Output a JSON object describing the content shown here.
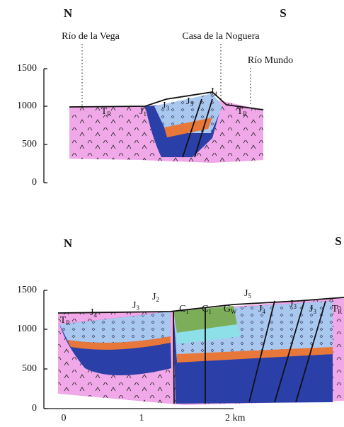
{
  "top_section": {
    "north": "N",
    "south": "S",
    "places": [
      "Río de la Vega",
      "Casa de la Noguera",
      "Río Mundo"
    ],
    "axis_ticks": [
      "1500",
      "1000",
      "500",
      "0"
    ],
    "units": [
      {
        "symbol": "T",
        "sub": "R"
      },
      {
        "symbol": "J",
        "sub": "1"
      },
      {
        "symbol": "J",
        "sub": "3"
      },
      {
        "symbol": "J",
        "sub": "3"
      },
      {
        "symbol": "J",
        "sub": "4"
      },
      {
        "symbol": "T",
        "sub": "R"
      }
    ]
  },
  "bottom_section": {
    "north": "N",
    "south": "S",
    "axis_ticks": [
      "1500",
      "1000",
      "500",
      "0"
    ],
    "units": [
      {
        "symbol": "T",
        "sub": "R"
      },
      {
        "symbol": "J",
        "sub": "4"
      },
      {
        "symbol": "J",
        "sub": "3"
      },
      {
        "symbol": "J",
        "sub": "2"
      },
      {
        "symbol": "C",
        "sub": "1"
      },
      {
        "symbol": "C",
        "sub": "1"
      },
      {
        "symbol": "G",
        "sub": "W"
      },
      {
        "symbol": "J",
        "sub": "5"
      },
      {
        "symbol": "J",
        "sub": "4"
      },
      {
        "symbol": "J",
        "sub": "3"
      },
      {
        "symbol": "J",
        "sub": "3"
      },
      {
        "symbol": "T",
        "sub": "R"
      }
    ],
    "scale": [
      "0",
      "1",
      "2 km"
    ]
  }
}
